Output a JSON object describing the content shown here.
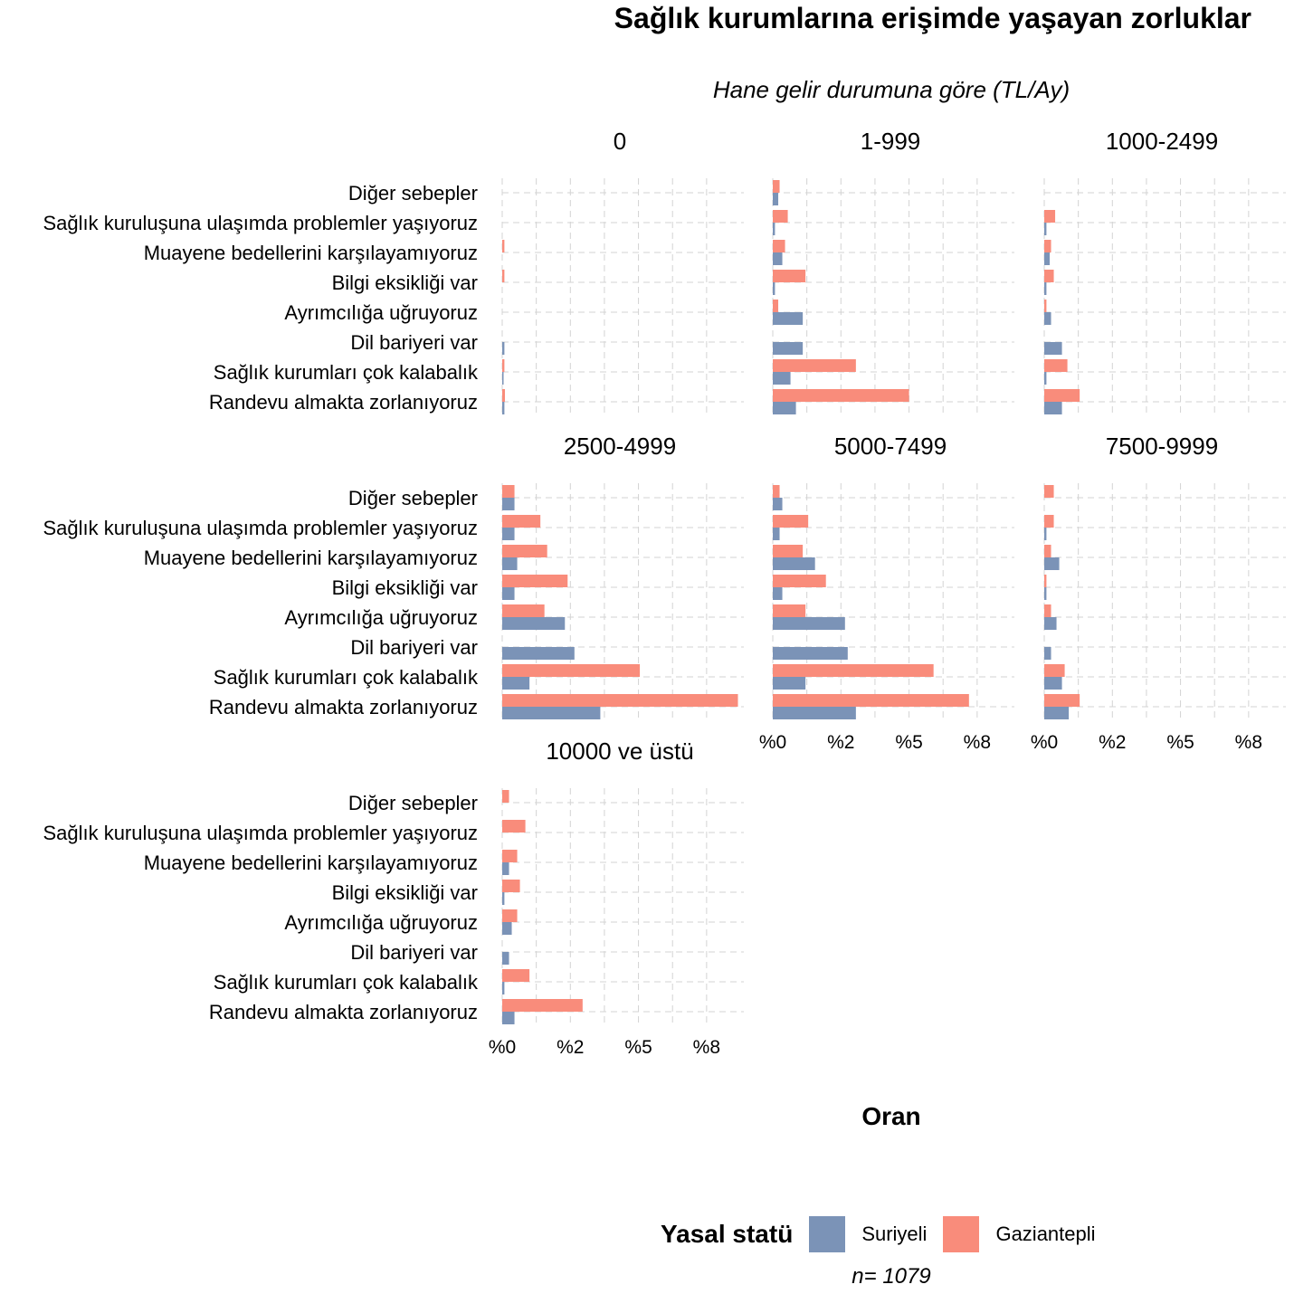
{
  "title": "Sağlık kurumlarına erişimde yaşayan zorluklar",
  "subtitle": "Hane gelir durumuna göre (TL/Ay)",
  "caption": "n=  1079",
  "legend": {
    "title": "Yasal statü",
    "items": [
      {
        "label": "Suriyeli",
        "color": "#7B93B7"
      },
      {
        "label": "Gaziantepli",
        "color": "#F98C7B"
      }
    ]
  },
  "chart_data": {
    "type": "bar",
    "orientation": "horizontal",
    "xlabel": "Oran",
    "x_ticks": [
      "%0",
      "%2",
      "%5",
      "%8"
    ],
    "x_tick_values": [
      0,
      2.5,
      5,
      7.5
    ],
    "xlim": [
      0,
      8.7
    ],
    "grid": true,
    "legend_position": "bottom",
    "categories": [
      "Randevu almakta zorlanıyoruz",
      "Sağlık kurumları çok kalabalık",
      "Dil bariyeri var",
      "Ayrımcılığa uğruyoruz",
      "Bilgi eksikliği var",
      "Muayene bedellerini karşılayamıyoruz",
      "Sağlık kuruluşuna ulaşımda problemler yaşıyoruz",
      "Diğer sebepler"
    ],
    "panels": [
      {
        "label": "0",
        "series": [
          {
            "name": "Suriyeli",
            "values": [
              0.08,
              0.05,
              0.08,
              0,
              0,
              0,
              0,
              0
            ]
          },
          {
            "name": "Gaziantepli",
            "values": [
              0.1,
              0.08,
              0,
              0,
              0.08,
              0.08,
              0,
              0
            ]
          }
        ]
      },
      {
        "label": "1-999",
        "series": [
          {
            "name": "Suriyeli",
            "values": [
              0.85,
              0.65,
              1.1,
              1.1,
              0.08,
              0.35,
              0.08,
              0.2
            ]
          },
          {
            "name": "Gaziantepli",
            "values": [
              5.0,
              3.05,
              0,
              0.2,
              1.2,
              0.45,
              0.55,
              0.25
            ]
          }
        ]
      },
      {
        "label": "1000-2499",
        "series": [
          {
            "name": "Suriyeli",
            "values": [
              0.65,
              0.08,
              0.65,
              0.25,
              0.08,
              0.2,
              0.08,
              0
            ]
          },
          {
            "name": "Gaziantepli",
            "values": [
              1.3,
              0.85,
              0,
              0.08,
              0.35,
              0.25,
              0.4,
              0
            ]
          }
        ]
      },
      {
        "label": "2500-4999",
        "series": [
          {
            "name": "Suriyeli",
            "values": [
              3.6,
              1.0,
              2.65,
              2.3,
              0.45,
              0.55,
              0.45,
              0.45
            ]
          },
          {
            "name": "Gaziantepli",
            "values": [
              8.65,
              5.05,
              0,
              1.55,
              2.4,
              1.65,
              1.4,
              0.45
            ]
          }
        ]
      },
      {
        "label": "5000-7499",
        "series": [
          {
            "name": "Suriyeli",
            "values": [
              3.05,
              1.2,
              2.75,
              2.65,
              0.35,
              1.55,
              0.25,
              0.35
            ]
          },
          {
            "name": "Gaziantepli",
            "values": [
              7.2,
              5.9,
              0,
              1.2,
              1.95,
              1.1,
              1.3,
              0.25
            ]
          }
        ]
      },
      {
        "label": "7500-9999",
        "series": [
          {
            "name": "Suriyeli",
            "values": [
              0.9,
              0.65,
              0.25,
              0.45,
              0.08,
              0.55,
              0.08,
              0
            ]
          },
          {
            "name": "Gaziantepli",
            "values": [
              1.3,
              0.75,
              0,
              0.25,
              0.08,
              0.25,
              0.35,
              0.35
            ]
          }
        ]
      },
      {
        "label": "10000 ve üstü",
        "series": [
          {
            "name": "Suriyeli",
            "values": [
              0.45,
              0.08,
              0.25,
              0.35,
              0.08,
              0.25,
              0,
              0
            ]
          },
          {
            "name": "Gaziantepli",
            "values": [
              2.95,
              1.0,
              0,
              0.55,
              0.65,
              0.55,
              0.85,
              0.25
            ]
          }
        ]
      }
    ]
  }
}
